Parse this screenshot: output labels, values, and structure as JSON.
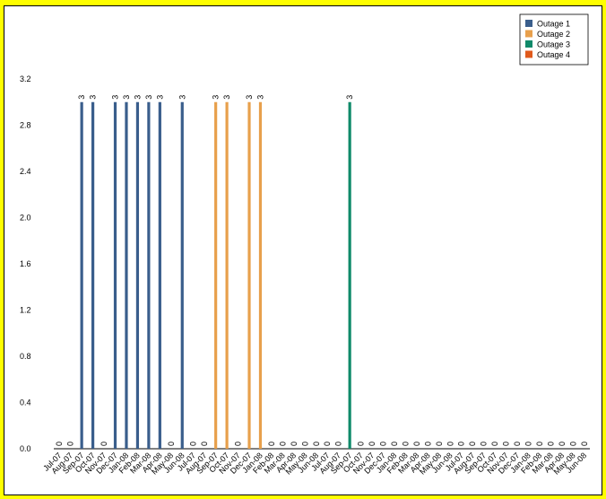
{
  "chart_data": {
    "type": "bar",
    "ylim": [
      0,
      3.2
    ],
    "yticks": [
      "0.0",
      "0.4",
      "0.8",
      "1.2",
      "1.6",
      "2.0",
      "2.4",
      "2.8",
      "3.2"
    ],
    "legend_position": "top-right",
    "grid": false,
    "series": [
      {
        "name": "Outage 1",
        "color": "#3a5e8c",
        "categories": [
          "Jul-07",
          "Aug-07",
          "Sep-07",
          "Oct-07",
          "Nov-07",
          "Dec-07",
          "Jan-08",
          "Feb-08",
          "Mar-08",
          "Apr-08",
          "May-08",
          "Jun-08"
        ],
        "values": [
          0,
          0,
          3,
          3,
          0,
          3,
          3,
          3,
          3,
          3,
          0,
          3
        ]
      },
      {
        "name": "Outage 2",
        "color": "#e8a04c",
        "categories": [
          "Jul-07",
          "Aug-07",
          "Sep-07",
          "Oct-07",
          "Nov-07",
          "Dec-07",
          "Jan-08",
          "Feb-08",
          "Mar-08",
          "Apr-08",
          "May-08",
          "Jun-08"
        ],
        "values": [
          0,
          0,
          3,
          3,
          0,
          3,
          3,
          0,
          0,
          0,
          0,
          0
        ]
      },
      {
        "name": "Outage 3",
        "color": "#108a6a",
        "categories": [
          "Jul-07",
          "Aug-07",
          "Sep-07",
          "Oct-07",
          "Nov-07",
          "Dec-07",
          "Jan-08",
          "Feb-08",
          "Mar-08",
          "Apr-08",
          "May-08",
          "Jun-08"
        ],
        "values": [
          0,
          0,
          3,
          0,
          0,
          0,
          0,
          0,
          0,
          0,
          0,
          0
        ]
      },
      {
        "name": "Outage 4",
        "color": "#e05a1c",
        "categories": [
          "Jul-07",
          "Aug-07",
          "Sep-07",
          "Oct-07",
          "Nov-07",
          "Dec-07",
          "Jan-08",
          "Feb-08",
          "Mar-08",
          "Apr-08",
          "May-08",
          "Jun-08"
        ],
        "values": [
          0,
          0,
          0,
          0,
          0,
          0,
          0,
          0,
          0,
          0,
          0,
          0
        ]
      }
    ]
  }
}
